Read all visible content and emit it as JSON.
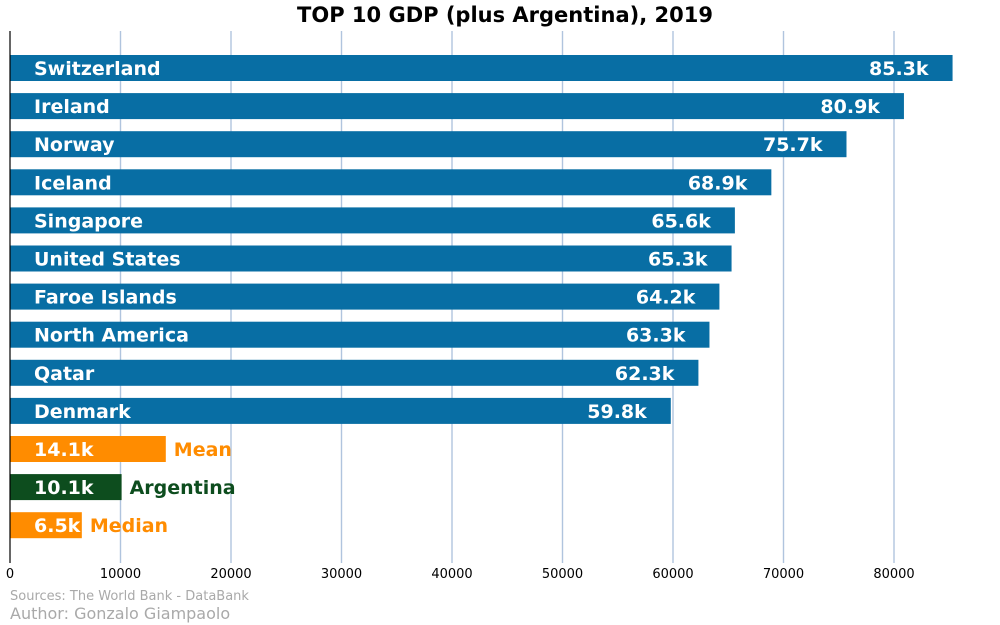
{
  "chart_data": {
    "type": "bar",
    "orientation": "horizontal",
    "title": "TOP 10 GDP (plus Argentina), 2019",
    "xlim": [
      0,
      87000
    ],
    "x_ticks": [
      0,
      10000,
      20000,
      30000,
      40000,
      50000,
      60000,
      70000,
      80000
    ],
    "grid": "vertical",
    "colors": {
      "top10": "#086ea4",
      "stat": "#ff8c00",
      "argentina": "#0d4d1e",
      "grid": "#b0c4de"
    },
    "bars": [
      {
        "name": "Switzerland",
        "value": 85300,
        "label": "85.3k",
        "group": "top10"
      },
      {
        "name": "Ireland",
        "value": 80900,
        "label": "80.9k",
        "group": "top10"
      },
      {
        "name": "Norway",
        "value": 75700,
        "label": "75.7k",
        "group": "top10"
      },
      {
        "name": "Iceland",
        "value": 68900,
        "label": "68.9k",
        "group": "top10"
      },
      {
        "name": "Singapore",
        "value": 65600,
        "label": "65.6k",
        "group": "top10"
      },
      {
        "name": "United States",
        "value": 65300,
        "label": "65.3k",
        "group": "top10"
      },
      {
        "name": "Faroe Islands",
        "value": 64200,
        "label": "64.2k",
        "group": "top10"
      },
      {
        "name": "North America",
        "value": 63300,
        "label": "63.3k",
        "group": "top10"
      },
      {
        "name": "Qatar",
        "value": 62300,
        "label": "62.3k",
        "group": "top10"
      },
      {
        "name": "Denmark",
        "value": 59800,
        "label": "59.8k",
        "group": "top10"
      },
      {
        "name": "Mean",
        "value": 14100,
        "label": "14.1k",
        "group": "stat"
      },
      {
        "name": "Argentina",
        "value": 10100,
        "label": "10.1k",
        "group": "argentina"
      },
      {
        "name": "Median",
        "value": 6500,
        "label": "6.5k",
        "group": "stat"
      }
    ]
  },
  "footer": {
    "source": "Sources: The World Bank - DataBank",
    "author": "Author: Gonzalo Giampaolo"
  }
}
